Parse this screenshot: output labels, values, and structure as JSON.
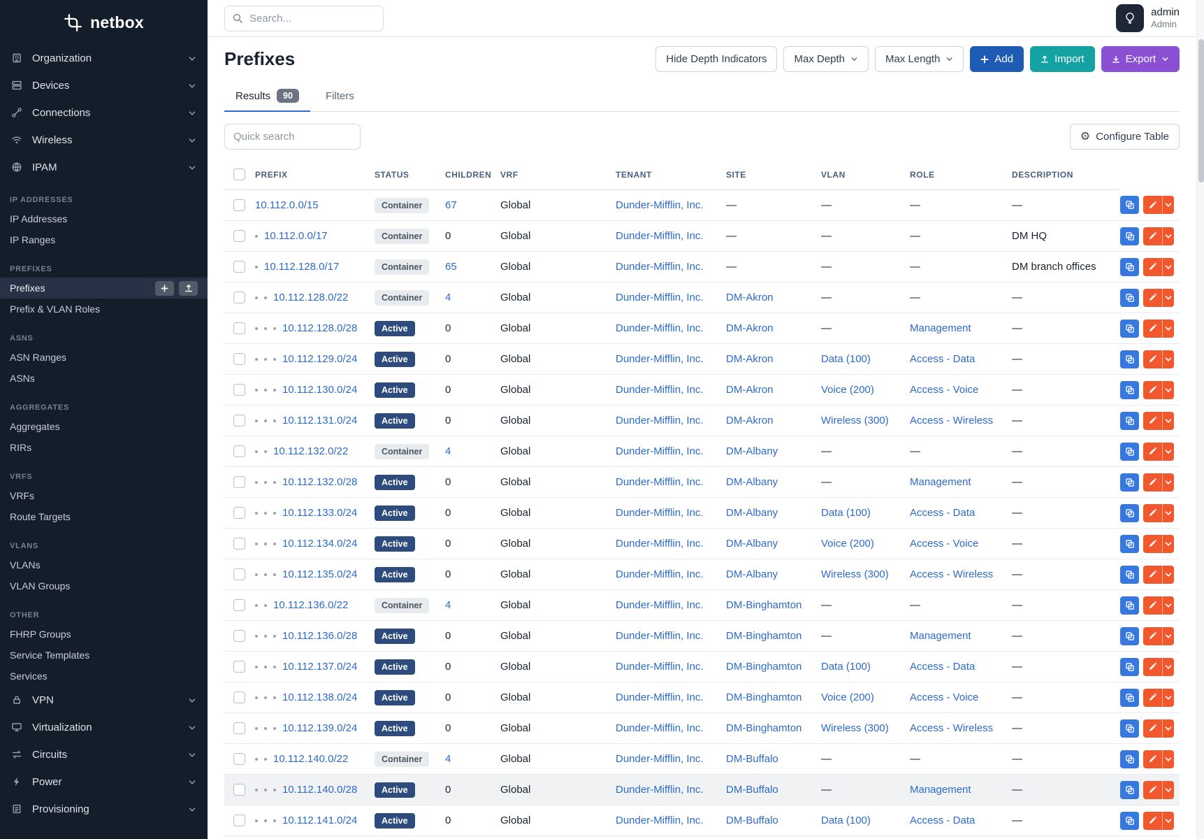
{
  "colors": {
    "sidebar-bg": "#141d2a",
    "accent-blue": "#1d5bb4",
    "teal": "#15a2a2",
    "purple": "#8a4fd3",
    "link": "#2d6bc8",
    "status-active": "#2d4c7d",
    "status-container-bg": "#e9ecef",
    "status-container-text": "#4a5560",
    "copy-btn": "#3778e0",
    "edit-btn": "#f2582e"
  },
  "brand": {
    "name": "netbox"
  },
  "topbar": {
    "search_placeholder": "Search...",
    "user_name": "admin",
    "user_role": "Admin"
  },
  "sidebar": {
    "top_menus": [
      {
        "label": "Organization",
        "icon": "organization-icon"
      },
      {
        "label": "Devices",
        "icon": "devices-icon"
      },
      {
        "label": "Connections",
        "icon": "connections-icon"
      },
      {
        "label": "Wireless",
        "icon": "wireless-icon"
      },
      {
        "label": "IPAM",
        "icon": "ipam-icon"
      }
    ],
    "sections": [
      {
        "title": "IP ADDRESSES",
        "items": [
          {
            "label": "IP Addresses"
          },
          {
            "label": "IP Ranges"
          }
        ]
      },
      {
        "title": "PREFIXES",
        "items": [
          {
            "label": "Prefixes",
            "active": true
          },
          {
            "label": "Prefix & VLAN Roles"
          }
        ]
      },
      {
        "title": "ASNS",
        "items": [
          {
            "label": "ASN Ranges"
          },
          {
            "label": "ASNs"
          }
        ]
      },
      {
        "title": "AGGREGATES",
        "items": [
          {
            "label": "Aggregates"
          },
          {
            "label": "RIRs"
          }
        ]
      },
      {
        "title": "VRFS",
        "items": [
          {
            "label": "VRFs"
          },
          {
            "label": "Route Targets"
          }
        ]
      },
      {
        "title": "VLANS",
        "items": [
          {
            "label": "VLANs"
          },
          {
            "label": "VLAN Groups"
          }
        ]
      },
      {
        "title": "OTHER",
        "items": [
          {
            "label": "FHRP Groups"
          },
          {
            "label": "Service Templates"
          },
          {
            "label": "Services"
          }
        ]
      }
    ],
    "bottom_menus": [
      {
        "label": "VPN",
        "icon": "vpn-icon"
      },
      {
        "label": "Virtualization",
        "icon": "virtualization-icon"
      },
      {
        "label": "Circuits",
        "icon": "circuits-icon"
      },
      {
        "label": "Power",
        "icon": "power-icon"
      },
      {
        "label": "Provisioning",
        "icon": "provisioning-icon"
      }
    ]
  },
  "page": {
    "title": "Prefixes",
    "toolbar": {
      "hide_depth_label": "Hide Depth Indicators",
      "max_depth_label": "Max Depth",
      "max_length_label": "Max Length",
      "add_label": "Add",
      "import_label": "Import",
      "export_label": "Export"
    },
    "tabs": [
      {
        "label": "Results",
        "badge": "90",
        "active": true
      },
      {
        "label": "Filters",
        "active": false
      }
    ],
    "quick_search_placeholder": "Quick search",
    "configure_table_label": "Configure Table"
  },
  "table": {
    "columns": [
      "PREFIX",
      "STATUS",
      "CHILDREN",
      "VRF",
      "TENANT",
      "SITE",
      "VLAN",
      "ROLE",
      "DESCRIPTION"
    ],
    "rows": [
      {
        "depth": 0,
        "prefix": "10.112.0.0/15",
        "status": "Container",
        "children": "67",
        "vrf": "Global",
        "tenant": "Dunder-Mifflin, Inc.",
        "site": "—",
        "vlan": "—",
        "role": "—",
        "description": "—"
      },
      {
        "depth": 1,
        "prefix": "10.112.0.0/17",
        "status": "Container",
        "children": "0",
        "vrf": "Global",
        "tenant": "Dunder-Mifflin, Inc.",
        "site": "—",
        "vlan": "—",
        "role": "—",
        "description": "DM HQ"
      },
      {
        "depth": 1,
        "prefix": "10.112.128.0/17",
        "status": "Container",
        "children": "65",
        "vrf": "Global",
        "tenant": "Dunder-Mifflin, Inc.",
        "site": "—",
        "vlan": "—",
        "role": "—",
        "description": "DM branch offices"
      },
      {
        "depth": 2,
        "prefix": "10.112.128.0/22",
        "status": "Container",
        "children": "4",
        "vrf": "Global",
        "tenant": "Dunder-Mifflin, Inc.",
        "site": "DM-Akron",
        "vlan": "—",
        "role": "—",
        "description": "—"
      },
      {
        "depth": 3,
        "prefix": "10.112.128.0/28",
        "status": "Active",
        "children": "0",
        "vrf": "Global",
        "tenant": "Dunder-Mifflin, Inc.",
        "site": "DM-Akron",
        "vlan": "—",
        "role": "Management",
        "description": "—"
      },
      {
        "depth": 3,
        "prefix": "10.112.129.0/24",
        "status": "Active",
        "children": "0",
        "vrf": "Global",
        "tenant": "Dunder-Mifflin, Inc.",
        "site": "DM-Akron",
        "vlan": "Data (100)",
        "role": "Access - Data",
        "description": "—"
      },
      {
        "depth": 3,
        "prefix": "10.112.130.0/24",
        "status": "Active",
        "children": "0",
        "vrf": "Global",
        "tenant": "Dunder-Mifflin, Inc.",
        "site": "DM-Akron",
        "vlan": "Voice (200)",
        "role": "Access - Voice",
        "description": "—"
      },
      {
        "depth": 3,
        "prefix": "10.112.131.0/24",
        "status": "Active",
        "children": "0",
        "vrf": "Global",
        "tenant": "Dunder-Mifflin, Inc.",
        "site": "DM-Akron",
        "vlan": "Wireless (300)",
        "role": "Access - Wireless",
        "description": "—"
      },
      {
        "depth": 2,
        "prefix": "10.112.132.0/22",
        "status": "Container",
        "children": "4",
        "vrf": "Global",
        "tenant": "Dunder-Mifflin, Inc.",
        "site": "DM-Albany",
        "vlan": "—",
        "role": "—",
        "description": "—"
      },
      {
        "depth": 3,
        "prefix": "10.112.132.0/28",
        "status": "Active",
        "children": "0",
        "vrf": "Global",
        "tenant": "Dunder-Mifflin, Inc.",
        "site": "DM-Albany",
        "vlan": "—",
        "role": "Management",
        "description": "—"
      },
      {
        "depth": 3,
        "prefix": "10.112.133.0/24",
        "status": "Active",
        "children": "0",
        "vrf": "Global",
        "tenant": "Dunder-Mifflin, Inc.",
        "site": "DM-Albany",
        "vlan": "Data (100)",
        "role": "Access - Data",
        "description": "—"
      },
      {
        "depth": 3,
        "prefix": "10.112.134.0/24",
        "status": "Active",
        "children": "0",
        "vrf": "Global",
        "tenant": "Dunder-Mifflin, Inc.",
        "site": "DM-Albany",
        "vlan": "Voice (200)",
        "role": "Access - Voice",
        "description": "—"
      },
      {
        "depth": 3,
        "prefix": "10.112.135.0/24",
        "status": "Active",
        "children": "0",
        "vrf": "Global",
        "tenant": "Dunder-Mifflin, Inc.",
        "site": "DM-Albany",
        "vlan": "Wireless (300)",
        "role": "Access - Wireless",
        "description": "—"
      },
      {
        "depth": 2,
        "prefix": "10.112.136.0/22",
        "status": "Container",
        "children": "4",
        "vrf": "Global",
        "tenant": "Dunder-Mifflin, Inc.",
        "site": "DM-Binghamton",
        "vlan": "—",
        "role": "—",
        "description": "—"
      },
      {
        "depth": 3,
        "prefix": "10.112.136.0/28",
        "status": "Active",
        "children": "0",
        "vrf": "Global",
        "tenant": "Dunder-Mifflin, Inc.",
        "site": "DM-Binghamton",
        "vlan": "—",
        "role": "Management",
        "description": "—"
      },
      {
        "depth": 3,
        "prefix": "10.112.137.0/24",
        "status": "Active",
        "children": "0",
        "vrf": "Global",
        "tenant": "Dunder-Mifflin, Inc.",
        "site": "DM-Binghamton",
        "vlan": "Data (100)",
        "role": "Access - Data",
        "description": "—"
      },
      {
        "depth": 3,
        "prefix": "10.112.138.0/24",
        "status": "Active",
        "children": "0",
        "vrf": "Global",
        "tenant": "Dunder-Mifflin, Inc.",
        "site": "DM-Binghamton",
        "vlan": "Voice (200)",
        "role": "Access - Voice",
        "description": "—"
      },
      {
        "depth": 3,
        "prefix": "10.112.139.0/24",
        "status": "Active",
        "children": "0",
        "vrf": "Global",
        "tenant": "Dunder-Mifflin, Inc.",
        "site": "DM-Binghamton",
        "vlan": "Wireless (300)",
        "role": "Access - Wireless",
        "description": "—"
      },
      {
        "depth": 2,
        "prefix": "10.112.140.0/22",
        "status": "Container",
        "children": "4",
        "vrf": "Global",
        "tenant": "Dunder-Mifflin, Inc.",
        "site": "DM-Buffalo",
        "vlan": "—",
        "role": "—",
        "description": "—"
      },
      {
        "depth": 3,
        "prefix": "10.112.140.0/28",
        "status": "Active",
        "children": "0",
        "vrf": "Global",
        "tenant": "Dunder-Mifflin, Inc.",
        "site": "DM-Buffalo",
        "vlan": "—",
        "role": "Management",
        "description": "—",
        "highlighted": true
      },
      {
        "depth": 3,
        "prefix": "10.112.141.0/24",
        "status": "Active",
        "children": "0",
        "vrf": "Global",
        "tenant": "Dunder-Mifflin, Inc.",
        "site": "DM-Buffalo",
        "vlan": "Data (100)",
        "role": "Access - Data",
        "description": "—"
      }
    ]
  }
}
